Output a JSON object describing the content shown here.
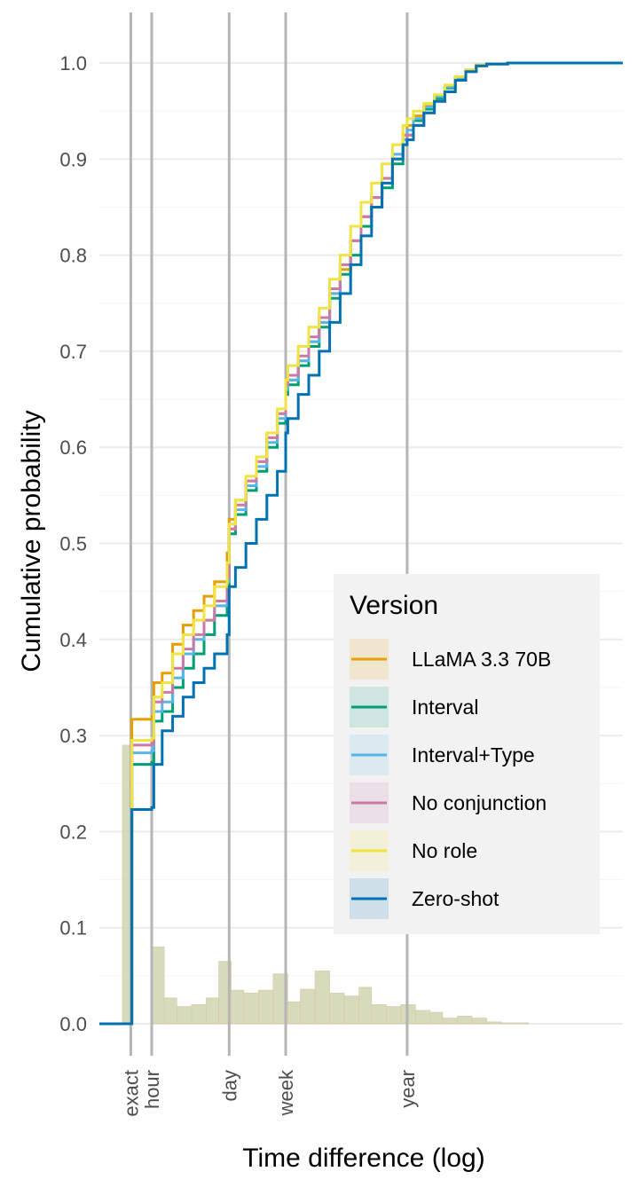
{
  "chart_data": {
    "type": "line",
    "xlabel": "Time difference (log)",
    "ylabel": "Cumulative probability",
    "ylim": [
      0,
      1.04
    ],
    "y_ticks": [
      {
        "label": "0.0",
        "value": 0.0
      },
      {
        "label": "0.1",
        "value": 0.1
      },
      {
        "label": "0.2",
        "value": 0.2
      },
      {
        "label": "0.3",
        "value": 0.3
      },
      {
        "label": "0.4",
        "value": 0.4
      },
      {
        "label": "0.5",
        "value": 0.5
      },
      {
        "label": "0.6",
        "value": 0.6
      },
      {
        "label": "0.7",
        "value": 0.7
      },
      {
        "label": "0.8",
        "value": 0.8
      },
      {
        "label": "0.9",
        "value": 0.9
      },
      {
        "label": "1.0",
        "value": 1.0
      }
    ],
    "x_reference_lines": [
      {
        "label": "exact",
        "x": 0
      },
      {
        "label": "hour",
        "x": 1
      },
      {
        "label": "day",
        "x": 4.7
      },
      {
        "label": "week",
        "x": 7.4
      },
      {
        "label": "year",
        "x": 13.2
      }
    ],
    "xlim": [
      -1.5,
      23.5
    ],
    "grid": true,
    "legend": {
      "title": "Version",
      "position": "right"
    },
    "series": [
      {
        "name": "LLaMA 3.3 70B",
        "color": "#E69F00",
        "cdf_x": [
          -1.5,
          0.0,
          0.05,
          1.0,
          1.1,
          1.5,
          2.0,
          2.5,
          3.0,
          3.5,
          4.0,
          4.6,
          4.7,
          5.0,
          5.5,
          6.0,
          6.5,
          7.0,
          7.4,
          7.5,
          8.0,
          8.5,
          9.0,
          9.5,
          10.0,
          10.5,
          11.0,
          11.5,
          12.0,
          12.5,
          13.0,
          13.2,
          13.5,
          14.0,
          14.5,
          15.0,
          15.5,
          16.0,
          16.5,
          17.0,
          18.0,
          19.0,
          21.0,
          23.5
        ],
        "cdf_y": [
          0.0,
          0.0,
          0.317,
          0.32,
          0.355,
          0.365,
          0.395,
          0.415,
          0.43,
          0.445,
          0.46,
          0.49,
          0.525,
          0.545,
          0.565,
          0.585,
          0.61,
          0.635,
          0.66,
          0.67,
          0.69,
          0.71,
          0.73,
          0.76,
          0.785,
          0.815,
          0.84,
          0.86,
          0.88,
          0.905,
          0.925,
          0.935,
          0.945,
          0.955,
          0.965,
          0.975,
          0.985,
          0.992,
          0.997,
          0.999,
          1.0,
          1.0,
          1.0,
          1.0
        ]
      },
      {
        "name": "Interval",
        "color": "#009E73",
        "cdf_x": [
          -1.5,
          0.0,
          0.05,
          1.0,
          1.1,
          1.5,
          2.0,
          2.5,
          3.0,
          3.5,
          4.0,
          4.6,
          4.7,
          5.0,
          5.5,
          6.0,
          6.5,
          7.0,
          7.4,
          7.5,
          8.0,
          8.5,
          9.0,
          9.5,
          10.0,
          10.5,
          11.0,
          11.5,
          12.0,
          12.5,
          13.0,
          13.2,
          13.5,
          14.0,
          14.5,
          15.0,
          15.5,
          16.0,
          16.5,
          17.0,
          18.0,
          19.0,
          21.0,
          23.5
        ],
        "cdf_y": [
          0.0,
          0.0,
          0.27,
          0.272,
          0.315,
          0.325,
          0.35,
          0.37,
          0.385,
          0.405,
          0.425,
          0.45,
          0.51,
          0.53,
          0.555,
          0.575,
          0.6,
          0.625,
          0.655,
          0.665,
          0.685,
          0.705,
          0.725,
          0.755,
          0.78,
          0.8,
          0.83,
          0.85,
          0.87,
          0.895,
          0.915,
          0.925,
          0.94,
          0.952,
          0.963,
          0.974,
          0.985,
          0.993,
          0.998,
          0.999,
          1.0,
          1.0,
          1.0,
          1.0
        ]
      },
      {
        "name": "Interval+Type",
        "color": "#56B4E9",
        "cdf_x": [
          -1.5,
          0.0,
          0.05,
          1.0,
          1.1,
          1.5,
          2.0,
          2.5,
          3.0,
          3.5,
          4.0,
          4.6,
          4.7,
          5.0,
          5.5,
          6.0,
          6.5,
          7.0,
          7.4,
          7.5,
          8.0,
          8.5,
          9.0,
          9.5,
          10.0,
          10.5,
          11.0,
          11.5,
          12.0,
          12.5,
          13.0,
          13.2,
          13.5,
          14.0,
          14.5,
          15.0,
          15.5,
          16.0,
          16.5,
          17.0,
          18.0,
          19.0,
          21.0,
          23.5
        ],
        "cdf_y": [
          0.0,
          0.0,
          0.282,
          0.284,
          0.325,
          0.335,
          0.36,
          0.385,
          0.4,
          0.42,
          0.435,
          0.46,
          0.515,
          0.535,
          0.56,
          0.58,
          0.605,
          0.63,
          0.66,
          0.67,
          0.69,
          0.71,
          0.73,
          0.76,
          0.79,
          0.815,
          0.84,
          0.86,
          0.88,
          0.905,
          0.92,
          0.93,
          0.942,
          0.954,
          0.965,
          0.975,
          0.985,
          0.993,
          0.998,
          0.999,
          1.0,
          1.0,
          1.0,
          1.0
        ]
      },
      {
        "name": "No conjunction",
        "color": "#CC79A7",
        "cdf_x": [
          -1.5,
          0.0,
          0.05,
          1.0,
          1.1,
          1.5,
          2.0,
          2.5,
          3.0,
          3.5,
          4.0,
          4.6,
          4.7,
          5.0,
          5.5,
          6.0,
          6.5,
          7.0,
          7.4,
          7.5,
          8.0,
          8.5,
          9.0,
          9.5,
          10.0,
          10.5,
          11.0,
          11.5,
          12.0,
          12.5,
          13.0,
          13.2,
          13.5,
          14.0,
          14.5,
          15.0,
          15.5,
          16.0,
          16.5,
          17.0,
          18.0,
          19.0,
          21.0,
          23.5
        ],
        "cdf_y": [
          0.0,
          0.0,
          0.29,
          0.292,
          0.335,
          0.345,
          0.37,
          0.39,
          0.405,
          0.42,
          0.44,
          0.465,
          0.515,
          0.54,
          0.565,
          0.585,
          0.61,
          0.635,
          0.665,
          0.675,
          0.695,
          0.715,
          0.735,
          0.765,
          0.79,
          0.815,
          0.84,
          0.86,
          0.88,
          0.9,
          0.915,
          0.925,
          0.935,
          0.948,
          0.96,
          0.97,
          0.982,
          0.991,
          0.997,
          0.999,
          1.0,
          1.0,
          1.0,
          1.0
        ]
      },
      {
        "name": "No role",
        "color": "#F0E442",
        "cdf_x": [
          -1.5,
          0.0,
          0.05,
          1.0,
          1.1,
          1.5,
          2.0,
          2.5,
          3.0,
          3.5,
          4.0,
          4.6,
          4.7,
          5.0,
          5.5,
          6.0,
          6.5,
          7.0,
          7.4,
          7.5,
          8.0,
          8.5,
          9.0,
          9.5,
          10.0,
          10.5,
          11.0,
          11.5,
          12.0,
          12.5,
          13.0,
          13.2,
          13.5,
          14.0,
          14.5,
          15.0,
          15.5,
          16.0,
          16.5,
          17.0,
          18.0,
          19.0,
          21.0,
          23.5
        ],
        "cdf_y": [
          0.0,
          0.0,
          0.295,
          0.297,
          0.34,
          0.355,
          0.385,
          0.405,
          0.42,
          0.435,
          0.455,
          0.48,
          0.52,
          0.545,
          0.57,
          0.59,
          0.615,
          0.64,
          0.67,
          0.685,
          0.705,
          0.725,
          0.745,
          0.775,
          0.8,
          0.83,
          0.855,
          0.875,
          0.895,
          0.915,
          0.935,
          0.942,
          0.95,
          0.958,
          0.967,
          0.977,
          0.986,
          0.993,
          0.998,
          0.999,
          1.0,
          1.0,
          1.0,
          1.0
        ]
      },
      {
        "name": "Zero-shot",
        "color": "#0072B2",
        "cdf_x": [
          -1.5,
          0.0,
          0.05,
          1.0,
          1.1,
          1.5,
          2.0,
          2.5,
          3.0,
          3.5,
          4.0,
          4.6,
          4.7,
          5.0,
          5.5,
          6.0,
          6.5,
          7.0,
          7.4,
          7.5,
          8.0,
          8.5,
          9.0,
          9.5,
          10.0,
          10.5,
          11.0,
          11.5,
          12.0,
          12.5,
          13.0,
          13.2,
          13.5,
          14.0,
          14.5,
          15.0,
          15.5,
          16.0,
          16.5,
          17.0,
          18.0,
          19.0,
          21.0,
          23.5
        ],
        "cdf_y": [
          0.0,
          0.0,
          0.223,
          0.225,
          0.27,
          0.305,
          0.32,
          0.34,
          0.355,
          0.37,
          0.385,
          0.405,
          0.455,
          0.475,
          0.5,
          0.525,
          0.55,
          0.575,
          0.615,
          0.63,
          0.655,
          0.675,
          0.7,
          0.73,
          0.76,
          0.79,
          0.82,
          0.85,
          0.875,
          0.9,
          0.915,
          0.92,
          0.935,
          0.948,
          0.96,
          0.97,
          0.982,
          0.991,
          0.997,
          0.999,
          1.0,
          1.0,
          1.0,
          1.0
        ]
      }
    ],
    "histogram": {
      "fill_color": "#c8cfa6",
      "bins": [
        {
          "x0": -0.4,
          "x1": 0.0,
          "y": 0.29
        },
        {
          "x0": 1.0,
          "x1": 1.6,
          "y": 0.08
        },
        {
          "x0": 1.6,
          "x1": 2.2,
          "y": 0.027
        },
        {
          "x0": 2.2,
          "x1": 2.9,
          "y": 0.018
        },
        {
          "x0": 2.9,
          "x1": 3.6,
          "y": 0.02
        },
        {
          "x0": 3.6,
          "x1": 4.2,
          "y": 0.027
        },
        {
          "x0": 4.2,
          "x1": 4.8,
          "y": 0.065
        },
        {
          "x0": 4.8,
          "x1": 5.4,
          "y": 0.035
        },
        {
          "x0": 5.4,
          "x1": 6.1,
          "y": 0.032
        },
        {
          "x0": 6.1,
          "x1": 6.8,
          "y": 0.035
        },
        {
          "x0": 6.8,
          "x1": 7.5,
          "y": 0.052
        },
        {
          "x0": 7.5,
          "x1": 8.1,
          "y": 0.023
        },
        {
          "x0": 8.1,
          "x1": 8.8,
          "y": 0.036
        },
        {
          "x0": 8.8,
          "x1": 9.5,
          "y": 0.055
        },
        {
          "x0": 9.5,
          "x1": 10.2,
          "y": 0.032
        },
        {
          "x0": 10.2,
          "x1": 10.9,
          "y": 0.029
        },
        {
          "x0": 10.9,
          "x1": 11.5,
          "y": 0.038
        },
        {
          "x0": 11.5,
          "x1": 12.2,
          "y": 0.02
        },
        {
          "x0": 12.2,
          "x1": 12.9,
          "y": 0.018
        },
        {
          "x0": 12.9,
          "x1": 13.6,
          "y": 0.02
        },
        {
          "x0": 13.6,
          "x1": 14.3,
          "y": 0.014
        },
        {
          "x0": 14.3,
          "x1": 14.9,
          "y": 0.012
        },
        {
          "x0": 14.9,
          "x1": 15.6,
          "y": 0.006
        },
        {
          "x0": 15.6,
          "x1": 16.3,
          "y": 0.008
        },
        {
          "x0": 16.3,
          "x1": 17.0,
          "y": 0.006
        },
        {
          "x0": 17.0,
          "x1": 17.7,
          "y": 0.002
        },
        {
          "x0": 17.7,
          "x1": 18.4,
          "y": 0.001
        },
        {
          "x0": 18.4,
          "x1": 19.0,
          "y": 0.001
        }
      ]
    }
  }
}
